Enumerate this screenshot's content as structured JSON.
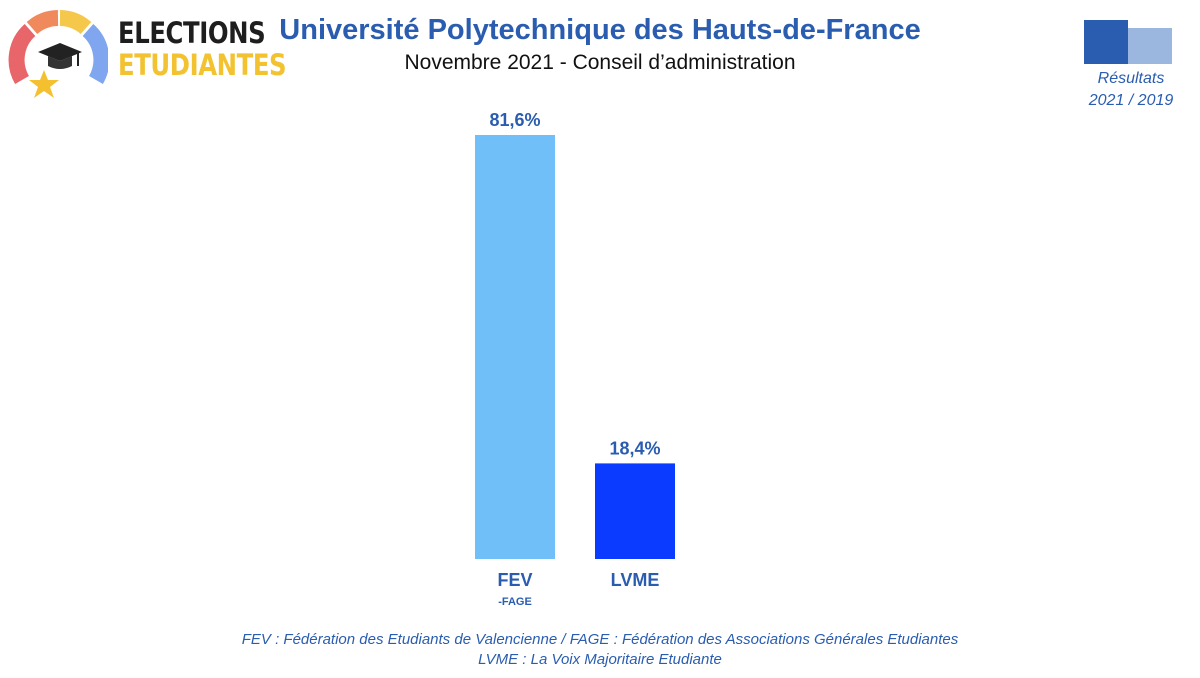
{
  "logo": {
    "line1": "ELECTIONS",
    "line2": "ETUDIANTES"
  },
  "header": {
    "title": "Université Polytechnique des Hauts-de-France",
    "subtitle": "Novembre 2021 - Conseil d’administration"
  },
  "legend": {
    "line1": "Résultats",
    "line2": "2021 / 2019"
  },
  "chart_data": {
    "type": "bar",
    "categories": [
      "FEV",
      "LVME"
    ],
    "category_sublabels": [
      "-FAGE",
      ""
    ],
    "values": [
      81.6,
      18.4
    ],
    "value_labels": [
      "81,6%",
      "18,4%"
    ],
    "colors": [
      "#70bff9",
      "#0b3bff"
    ],
    "title": "Université Polytechnique des Hauts-de-France",
    "subtitle": "Novembre 2021 - Conseil d’administration",
    "ylim": [
      0,
      81.6
    ],
    "grid": false
  },
  "footnotes": [
    "FEV : Fédération des Etudiants de Valencienne / FAGE : Fédération des Associations Générales Etudiantes",
    "LVME : La Voix Majoritaire Etudiante"
  ],
  "colors": {
    "text_blue": "#2a5db0",
    "logo_yellow": "#f2c230"
  }
}
